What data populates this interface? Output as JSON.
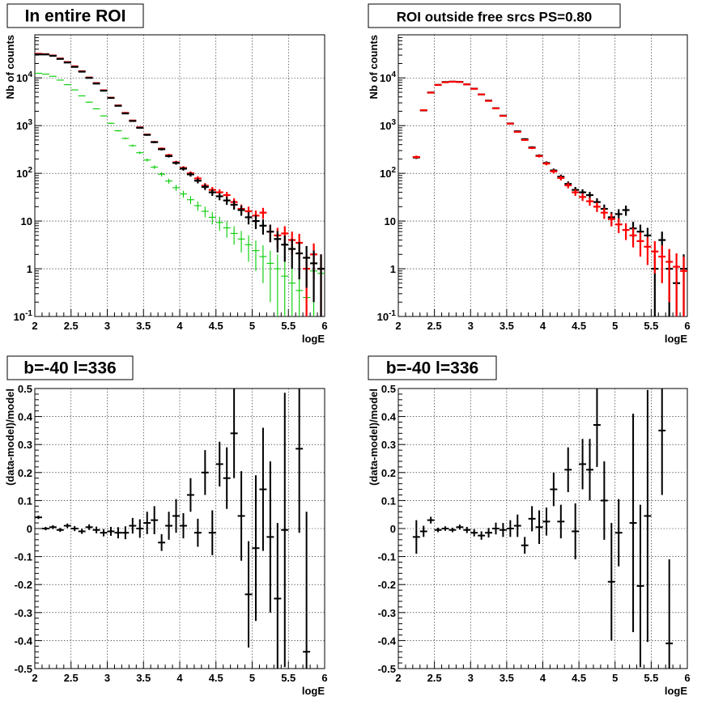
{
  "colors": {
    "data": "#000000",
    "model": "#ff0000",
    "model_alt": "#00cc00",
    "model_blue": "#0000cc",
    "background": "#ffffff"
  },
  "chart_data": [
    {
      "type": "scatter",
      "title": "In entire ROI",
      "xlabel": "logE",
      "ylabel": "Nb of counts",
      "xlim": [
        2,
        6
      ],
      "ylim": [
        0.1,
        80000
      ],
      "ylog": true,
      "grid": true,
      "x_ticks": [
        "2",
        "2.5",
        "3",
        "3.5",
        "4",
        "4.5",
        "5",
        "5.5",
        "6"
      ],
      "y_ticks": [
        "10^-1",
        "1",
        "10",
        "10^2",
        "10^3",
        "10^4"
      ],
      "x": [
        2.05,
        2.15,
        2.25,
        2.35,
        2.45,
        2.55,
        2.65,
        2.75,
        2.85,
        2.95,
        3.05,
        3.15,
        3.25,
        3.35,
        3.45,
        3.55,
        3.65,
        3.75,
        3.85,
        3.95,
        4.05,
        4.15,
        4.25,
        4.35,
        4.45,
        4.55,
        4.65,
        4.75,
        4.85,
        4.95,
        5.05,
        5.15,
        5.25,
        5.35,
        5.45,
        5.55,
        5.65,
        5.75,
        5.85,
        5.95
      ],
      "series": [
        {
          "values": [
            31000,
            31000,
            29000,
            25000,
            21000,
            17000,
            13500,
            10000,
            7600,
            5400,
            3800,
            2600,
            1800,
            1250,
            900,
            640,
            450,
            320,
            230,
            165,
            125,
            95,
            70,
            52,
            40,
            33,
            27,
            22,
            17,
            12,
            10,
            8,
            6,
            4.2,
            3.2,
            2.6,
            2.1,
            1.7,
            1.3,
            1.0
          ],
          "errors": [
            180,
            180,
            170,
            160,
            145,
            130,
            115,
            100,
            87,
            73,
            62,
            51,
            42,
            35,
            30,
            25,
            21,
            18,
            15,
            13,
            11,
            9.7,
            8.4,
            7.2,
            6.3,
            5.7,
            5.2,
            4.7,
            4.1,
            3.5,
            3.2,
            2.8,
            2.4,
            2.0,
            1.8,
            1.6,
            1.5,
            1.3,
            1.1,
            1.0
          ]
        },
        {
          "values": [
            32000,
            31500,
            29500,
            25500,
            21500,
            17500,
            13800,
            10200,
            7800,
            5500,
            3850,
            2650,
            1850,
            1280,
            920,
            650,
            455,
            330,
            240,
            170,
            130,
            100,
            78,
            55,
            45,
            40,
            35,
            25,
            18,
            16,
            13,
            15,
            6,
            5,
            5.5,
            4,
            3.5,
            1,
            2,
            1
          ],
          "errors": [
            180,
            180,
            170,
            160,
            145,
            130,
            115,
            100,
            87,
            73,
            62,
            51,
            42,
            35,
            30,
            25,
            21,
            18,
            15,
            13,
            11,
            10,
            9,
            7.4,
            6.7,
            6.3,
            5.9,
            5,
            4.2,
            4,
            3.6,
            3.9,
            2.4,
            2.2,
            2.3,
            2,
            1.9,
            1,
            1.4,
            1
          ]
        },
        {
          "values": [
            12500,
            12000,
            10800,
            9000,
            7200,
            5600,
            4200,
            3100,
            2250,
            1600,
            1120,
            780,
            540,
            380,
            270,
            190,
            135,
            96,
            69,
            50,
            37,
            28,
            21,
            16,
            12,
            9.3,
            7.2,
            5.5,
            4.2,
            3.2,
            2.4,
            1.8,
            1.3,
            1.0,
            0.7,
            0.5,
            0.35,
            0.25,
            0.9,
            0.8
          ],
          "errors": [
            110,
            110,
            104,
            95,
            85,
            75,
            65,
            56,
            47,
            40,
            33,
            28,
            23,
            19,
            16,
            14,
            12,
            10,
            8.3,
            7.1,
            6.1,
            5.3,
            4.6,
            4.0,
            3.5,
            3.0,
            2.7,
            2.3,
            2.0,
            1.8,
            1.5,
            1.3,
            1.1,
            1.0,
            0.8,
            0.7,
            0.6,
            0.5,
            0.9,
            0.9
          ]
        }
      ]
    },
    {
      "type": "scatter",
      "title": "ROI outside free srcs PS=0.80",
      "xlabel": "logE",
      "ylabel": "Nb of counts",
      "xlim": [
        2,
        6
      ],
      "ylim": [
        0.1,
        80000
      ],
      "ylog": true,
      "grid": true,
      "x_ticks": [
        "2",
        "2.5",
        "3",
        "3.5",
        "4",
        "4.5",
        "5",
        "5.5",
        "6"
      ],
      "y_ticks": [
        "10^-1",
        "1",
        "10",
        "10^2",
        "10^3",
        "10^4"
      ],
      "x": [
        2.25,
        2.35,
        2.45,
        2.55,
        2.65,
        2.75,
        2.85,
        2.95,
        3.05,
        3.15,
        3.25,
        3.35,
        3.45,
        3.55,
        3.65,
        3.75,
        3.85,
        3.95,
        4.05,
        4.15,
        4.25,
        4.35,
        4.45,
        4.55,
        4.65,
        4.75,
        4.85,
        4.95,
        5.05,
        5.15,
        5.25,
        5.35,
        5.45,
        5.55,
        5.65,
        5.75,
        5.85,
        5.95
      ],
      "series": [
        {
          "values": [
            220,
            2100,
            4900,
            7100,
            8100,
            8300,
            8200,
            7300,
            5900,
            4500,
            3300,
            2300,
            1600,
            1100,
            740,
            500,
            340,
            230,
            160,
            110,
            80,
            56,
            40,
            32,
            26,
            20,
            15,
            11,
            8.5,
            6.5,
            5,
            3.8,
            2.9,
            2.3,
            1.8,
            1.4,
            1.1,
            0.9
          ],
          "errors": [
            15,
            46,
            70,
            84,
            90,
            91,
            90,
            85,
            77,
            67,
            57,
            48,
            40,
            33,
            27,
            22,
            18,
            15,
            12.6,
            10.5,
            8.9,
            7.5,
            6.3,
            5.7,
            5.1,
            4.5,
            3.9,
            3.3,
            2.9,
            2.5,
            2.2,
            2.0,
            1.7,
            1.5,
            1.3,
            1.2,
            1.0,
            0.9
          ]
        },
        {
          "values": [
            215,
            2080,
            4950,
            7150,
            8200,
            8350,
            8250,
            7350,
            5950,
            4520,
            3350,
            2320,
            1620,
            1110,
            760,
            520,
            350,
            235,
            165,
            115,
            85,
            60,
            45,
            40,
            35,
            25,
            18,
            12,
            14,
            17,
            7,
            6,
            5,
            1,
            4,
            1,
            0.5,
            1
          ],
          "errors": [
            15,
            46,
            70,
            85,
            91,
            91,
            91,
            86,
            77,
            67,
            58,
            48,
            40,
            33,
            28,
            23,
            19,
            15,
            13,
            11,
            9.2,
            7.7,
            6.7,
            6.3,
            5.9,
            5,
            4.2,
            3.5,
            3.7,
            4.1,
            2.6,
            2.4,
            2.2,
            1,
            2,
            1,
            0.7,
            1
          ]
        }
      ]
    },
    {
      "type": "scatter",
      "title": "b=-40 l=336",
      "xlabel": "logE",
      "ylabel": "(data-model)/model",
      "xlim": [
        2,
        6
      ],
      "ylim": [
        -0.5,
        0.5
      ],
      "grid": true,
      "x_ticks": [
        "2",
        "2.5",
        "3",
        "3.5",
        "4",
        "4.5",
        "5",
        "5.5",
        "6"
      ],
      "y_ticks": [
        "-0.5",
        "-0.4",
        "-0.3",
        "-0.2",
        "-0.1",
        "0",
        "0.1",
        "0.2",
        "0.3",
        "0.4",
        "0.5"
      ],
      "x": [
        2.05,
        2.15,
        2.25,
        2.35,
        2.45,
        2.55,
        2.65,
        2.75,
        2.85,
        2.95,
        3.05,
        3.15,
        3.25,
        3.35,
        3.45,
        3.55,
        3.65,
        3.75,
        3.85,
        3.95,
        4.05,
        4.15,
        4.25,
        4.35,
        4.45,
        4.55,
        4.65,
        4.75,
        4.85,
        4.95,
        5.05,
        5.15,
        5.25,
        5.35,
        5.45,
        5.55,
        5.65,
        5.75
      ],
      "series": [
        {
          "values": [
            0.04,
            0.0,
            0.005,
            -0.005,
            0.01,
            0.0,
            -0.01,
            0.005,
            -0.005,
            -0.015,
            -0.01,
            -0.015,
            -0.015,
            0.01,
            0.0,
            0.02,
            0.03,
            -0.05,
            0.01,
            0.045,
            0.01,
            0.12,
            -0.015,
            0.2,
            -0.015,
            0.23,
            0.18,
            0.34,
            0.045,
            -0.235,
            -0.07,
            0.14,
            -0.03,
            -0.25,
            -0.005,
            null,
            0.285,
            -0.44
          ],
          "errors": [
            0.006,
            0.006,
            0.007,
            0.007,
            0.008,
            0.009,
            0.009,
            0.01,
            0.012,
            0.013,
            0.016,
            0.02,
            0.023,
            0.028,
            0.033,
            0.04,
            0.05,
            0.03,
            0.05,
            0.06,
            0.045,
            0.06,
            0.05,
            0.08,
            0.08,
            0.08,
            0.11,
            0.16,
            0.16,
            0.19,
            0.26,
            0.22,
            0.27,
            0.27,
            0.49,
            null,
            0.3,
            0.5
          ]
        }
      ]
    },
    {
      "type": "scatter",
      "title": "b=-40 l=336",
      "xlabel": "logE",
      "ylabel": "(data-model)/model",
      "xlim": [
        2,
        6
      ],
      "ylim": [
        -0.5,
        0.5
      ],
      "grid": true,
      "x_ticks": [
        "2",
        "2.5",
        "3",
        "3.5",
        "4",
        "4.5",
        "5",
        "5.5",
        "6"
      ],
      "y_ticks": [
        "-0.5",
        "-0.4",
        "-0.3",
        "-0.2",
        "-0.1",
        "0",
        "0.1",
        "0.2",
        "0.3",
        "0.4",
        "0.5"
      ],
      "x": [
        2.25,
        2.35,
        2.45,
        2.55,
        2.65,
        2.75,
        2.85,
        2.95,
        3.05,
        3.15,
        3.25,
        3.35,
        3.45,
        3.55,
        3.65,
        3.75,
        3.85,
        3.95,
        4.05,
        4.15,
        4.25,
        4.35,
        4.45,
        4.55,
        4.65,
        4.75,
        4.85,
        4.95,
        5.05,
        5.15,
        5.25,
        5.35,
        5.45,
        5.55,
        5.65,
        5.75
      ],
      "series": [
        {
          "values": [
            -0.03,
            -0.01,
            0.03,
            -0.005,
            0.0,
            -0.005,
            0.005,
            -0.005,
            -0.015,
            -0.025,
            -0.015,
            0.0,
            -0.005,
            0.0,
            0.01,
            -0.06,
            0.035,
            0.005,
            0.025,
            0.14,
            0.025,
            0.21,
            -0.01,
            0.23,
            0.21,
            0.37,
            0.1,
            -0.19,
            -0.015,
            null,
            0.02,
            -0.205,
            0.045,
            null,
            0.35,
            -0.41
          ],
          "errors": [
            0.06,
            0.02,
            0.012,
            0.008,
            0.008,
            0.008,
            0.009,
            0.011,
            0.013,
            0.015,
            0.017,
            0.021,
            0.025,
            0.03,
            0.04,
            0.03,
            0.045,
            0.06,
            0.05,
            0.06,
            0.06,
            0.08,
            0.1,
            0.09,
            0.11,
            0.15,
            0.14,
            0.21,
            0.12,
            null,
            0.39,
            0.29,
            0.45,
            null,
            0.23,
            0.3
          ]
        }
      ]
    }
  ]
}
